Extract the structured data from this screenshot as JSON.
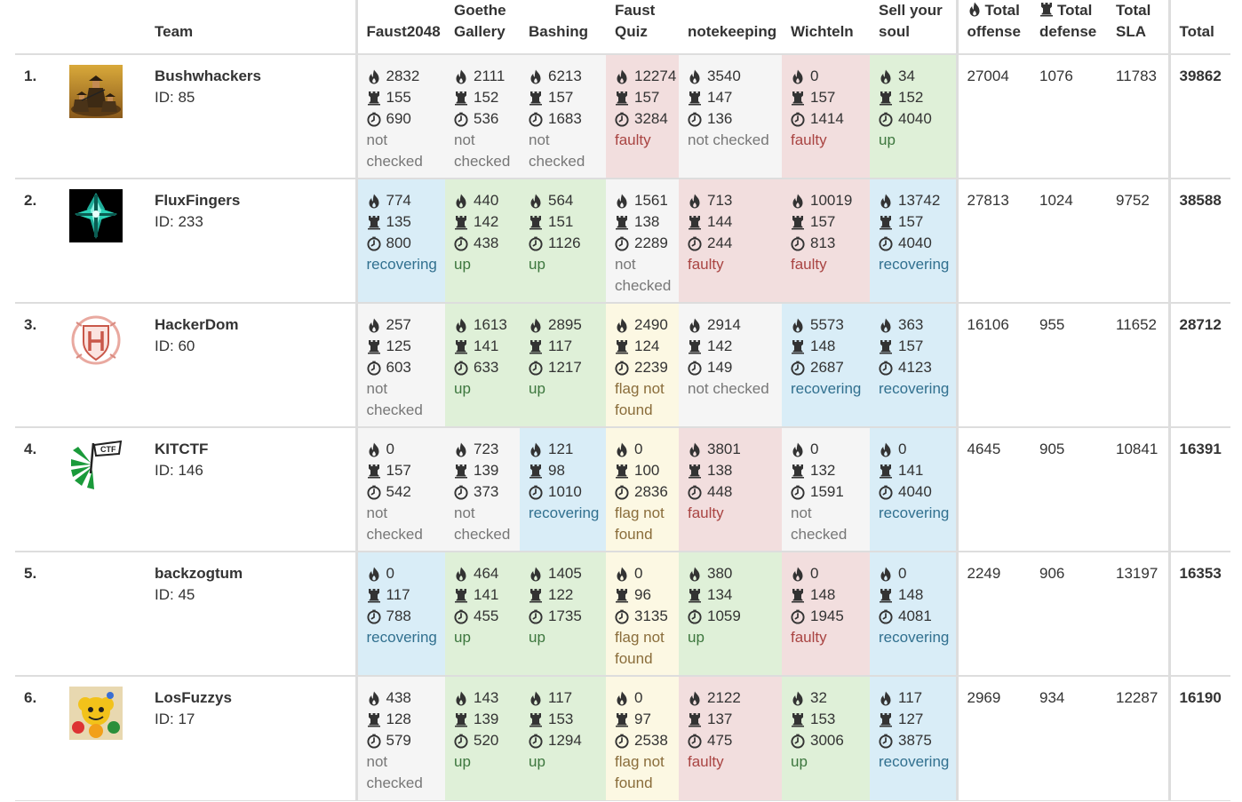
{
  "headers": {
    "team": "Team",
    "services": [
      "Faust2048",
      "Goethe Gallery",
      "Bashing",
      "Faust Quiz",
      "notekeeping",
      "Wichteln",
      "Sell your soul"
    ],
    "total_offense": "Total offense",
    "total_defense": "Total defense",
    "total_sla": "Total SLA",
    "total": "Total"
  },
  "teams": [
    {
      "rank": "1.",
      "name": "Bushwhackers",
      "id": "ID: 85",
      "logo": "bushwhackers-logo",
      "services": [
        {
          "offense": "2832",
          "defense": "155",
          "sla": "690",
          "status": "not checked",
          "state": "notchecked"
        },
        {
          "offense": "2111",
          "defense": "152",
          "sla": "536",
          "status": "not checked",
          "state": "notchecked"
        },
        {
          "offense": "6213",
          "defense": "157",
          "sla": "1683",
          "status": "not checked",
          "state": "notchecked"
        },
        {
          "offense": "12274",
          "defense": "157",
          "sla": "3284",
          "status": "faulty",
          "state": "faulty"
        },
        {
          "offense": "3540",
          "defense": "147",
          "sla": "136",
          "status": "not checked",
          "state": "notchecked"
        },
        {
          "offense": "0",
          "defense": "157",
          "sla": "1414",
          "status": "faulty",
          "state": "faulty"
        },
        {
          "offense": "34",
          "defense": "152",
          "sla": "4040",
          "status": "up",
          "state": "up"
        }
      ],
      "total_offense": "27004",
      "total_defense": "1076",
      "total_sla": "11783",
      "total": "39862"
    },
    {
      "rank": "2.",
      "name": "FluxFingers",
      "id": "ID: 233",
      "logo": "fluxfingers-logo",
      "services": [
        {
          "offense": "774",
          "defense": "135",
          "sla": "800",
          "status": "recovering",
          "state": "recovering"
        },
        {
          "offense": "440",
          "defense": "142",
          "sla": "438",
          "status": "up",
          "state": "up"
        },
        {
          "offense": "564",
          "defense": "151",
          "sla": "1126",
          "status": "up",
          "state": "up"
        },
        {
          "offense": "1561",
          "defense": "138",
          "sla": "2289",
          "status": "not checked",
          "state": "notchecked"
        },
        {
          "offense": "713",
          "defense": "144",
          "sla": "244",
          "status": "faulty",
          "state": "faulty"
        },
        {
          "offense": "10019",
          "defense": "157",
          "sla": "813",
          "status": "faulty",
          "state": "faulty"
        },
        {
          "offense": "13742",
          "defense": "157",
          "sla": "4040",
          "status": "recovering",
          "state": "recovering"
        }
      ],
      "total_offense": "27813",
      "total_defense": "1024",
      "total_sla": "9752",
      "total": "38588"
    },
    {
      "rank": "3.",
      "name": "HackerDom",
      "id": "ID: 60",
      "logo": "hackerdom-logo",
      "services": [
        {
          "offense": "257",
          "defense": "125",
          "sla": "603",
          "status": "not checked",
          "state": "notchecked"
        },
        {
          "offense": "1613",
          "defense": "141",
          "sla": "633",
          "status": "up",
          "state": "up"
        },
        {
          "offense": "2895",
          "defense": "117",
          "sla": "1217",
          "status": "up",
          "state": "up"
        },
        {
          "offense": "2490",
          "defense": "124",
          "sla": "2239",
          "status": "flag not found",
          "state": "flag"
        },
        {
          "offense": "2914",
          "defense": "142",
          "sla": "149",
          "status": "not checked",
          "state": "notchecked"
        },
        {
          "offense": "5573",
          "defense": "148",
          "sla": "2687",
          "status": "recovering",
          "state": "recovering"
        },
        {
          "offense": "363",
          "defense": "157",
          "sla": "4123",
          "status": "recovering",
          "state": "recovering"
        }
      ],
      "total_offense": "16106",
      "total_defense": "955",
      "total_sla": "11652",
      "total": "28712"
    },
    {
      "rank": "4.",
      "name": "KITCTF",
      "id": "ID: 146",
      "logo": "kitctf-logo",
      "services": [
        {
          "offense": "0",
          "defense": "157",
          "sla": "542",
          "status": "not checked",
          "state": "notchecked"
        },
        {
          "offense": "723",
          "defense": "139",
          "sla": "373",
          "status": "not checked",
          "state": "notchecked"
        },
        {
          "offense": "121",
          "defense": "98",
          "sla": "1010",
          "status": "recovering",
          "state": "recovering"
        },
        {
          "offense": "0",
          "defense": "100",
          "sla": "2836",
          "status": "flag not found",
          "state": "flag"
        },
        {
          "offense": "3801",
          "defense": "138",
          "sla": "448",
          "status": "faulty",
          "state": "faulty"
        },
        {
          "offense": "0",
          "defense": "132",
          "sla": "1591",
          "status": "not checked",
          "state": "notchecked"
        },
        {
          "offense": "0",
          "defense": "141",
          "sla": "4040",
          "status": "recovering",
          "state": "recovering"
        }
      ],
      "total_offense": "4645",
      "total_defense": "905",
      "total_sla": "10841",
      "total": "16391"
    },
    {
      "rank": "5.",
      "name": "backzogtum",
      "id": "ID: 45",
      "logo": "",
      "services": [
        {
          "offense": "0",
          "defense": "117",
          "sla": "788",
          "status": "recovering",
          "state": "recovering"
        },
        {
          "offense": "464",
          "defense": "141",
          "sla": "455",
          "status": "up",
          "state": "up"
        },
        {
          "offense": "1405",
          "defense": "122",
          "sla": "1735",
          "status": "up",
          "state": "up"
        },
        {
          "offense": "0",
          "defense": "96",
          "sla": "3135",
          "status": "flag not found",
          "state": "flag"
        },
        {
          "offense": "380",
          "defense": "134",
          "sla": "1059",
          "status": "up",
          "state": "up"
        },
        {
          "offense": "0",
          "defense": "148",
          "sla": "1945",
          "status": "faulty",
          "state": "faulty"
        },
        {
          "offense": "0",
          "defense": "148",
          "sla": "4081",
          "status": "recovering",
          "state": "recovering"
        }
      ],
      "total_offense": "2249",
      "total_defense": "906",
      "total_sla": "13197",
      "total": "16353"
    },
    {
      "rank": "6.",
      "name": "LosFuzzys",
      "id": "ID: 17",
      "logo": "losfuzzys-logo",
      "services": [
        {
          "offense": "438",
          "defense": "128",
          "sla": "579",
          "status": "not checked",
          "state": "notchecked"
        },
        {
          "offense": "143",
          "defense": "139",
          "sla": "520",
          "status": "up",
          "state": "up"
        },
        {
          "offense": "117",
          "defense": "153",
          "sla": "1294",
          "status": "up",
          "state": "up"
        },
        {
          "offense": "0",
          "defense": "97",
          "sla": "2538",
          "status": "flag not found",
          "state": "flag"
        },
        {
          "offense": "2122",
          "defense": "137",
          "sla": "475",
          "status": "faulty",
          "state": "faulty"
        },
        {
          "offense": "32",
          "defense": "153",
          "sla": "3006",
          "status": "up",
          "state": "up"
        },
        {
          "offense": "117",
          "defense": "127",
          "sla": "3875",
          "status": "recovering",
          "state": "recovering"
        }
      ],
      "total_offense": "2969",
      "total_defense": "934",
      "total_sla": "12287",
      "total": "16190"
    }
  ],
  "icons": {
    "offense": "fire-icon",
    "defense": "rook-icon",
    "sla": "clock-icon"
  },
  "colors": {
    "up": "#dff0d8",
    "recovering": "#d9edf7",
    "faulty": "#f2dede",
    "flag_not_found": "#fcf8e3",
    "not_checked": "#f5f5f5"
  }
}
